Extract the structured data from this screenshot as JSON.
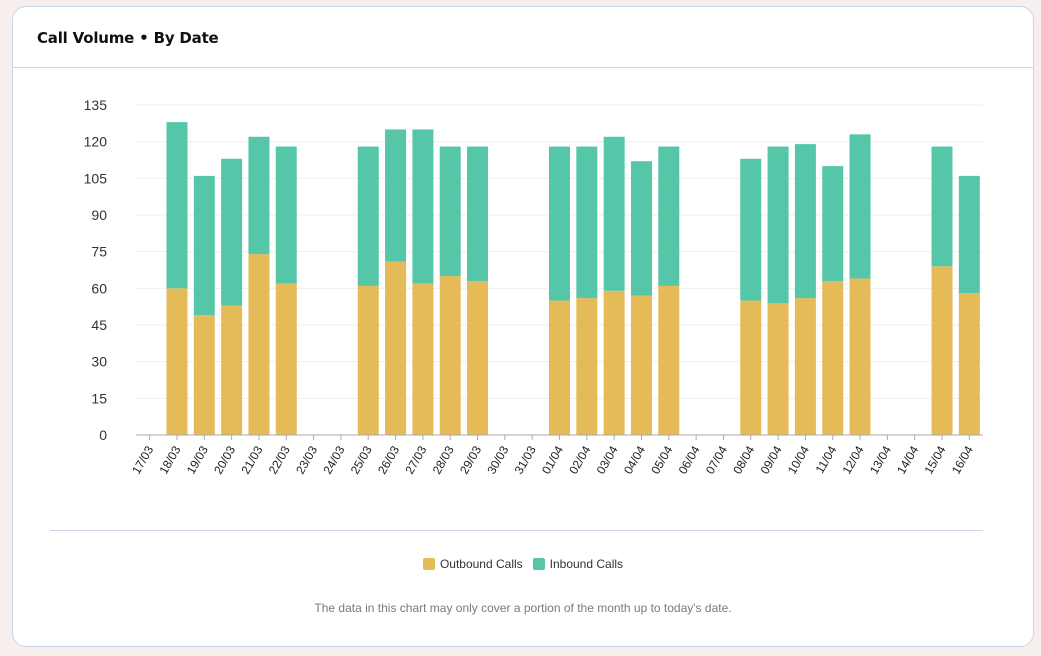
{
  "card": {
    "title": "Call Volume • By Date",
    "footnote": "The data in this chart may only cover a portion of the month up to today's date."
  },
  "legend": [
    {
      "label": "Outbound Calls",
      "color": "#e5bb5a"
    },
    {
      "label": "Inbound Calls",
      "color": "#55c7a8"
    }
  ],
  "chart_data": {
    "type": "bar",
    "stacked": true,
    "categories": [
      "17/03",
      "18/03",
      "19/03",
      "20/03",
      "21/03",
      "22/03",
      "23/03",
      "24/03",
      "25/03",
      "26/03",
      "27/03",
      "28/03",
      "29/03",
      "30/03",
      "31/03",
      "01/04",
      "02/04",
      "03/04",
      "04/04",
      "05/04",
      "06/04",
      "07/04",
      "08/04",
      "09/04",
      "10/04",
      "11/04",
      "12/04",
      "13/04",
      "14/04",
      "15/04",
      "16/04"
    ],
    "series": [
      {
        "name": "Outbound Calls",
        "color": "#e5bb5a",
        "values": [
          0,
          60,
          49,
          53,
          74,
          62,
          0,
          0,
          61,
          71,
          62,
          65,
          63,
          0,
          0,
          55,
          56,
          59,
          57,
          61,
          0,
          0,
          55,
          54,
          56,
          63,
          64,
          0,
          0,
          69,
          58
        ]
      },
      {
        "name": "Inbound Calls",
        "color": "#55c7a8",
        "values": [
          0,
          68,
          57,
          60,
          48,
          56,
          0,
          0,
          57,
          54,
          63,
          53,
          55,
          0,
          0,
          63,
          62,
          63,
          55,
          57,
          0,
          0,
          58,
          64,
          63,
          47,
          59,
          0,
          0,
          49,
          48
        ]
      }
    ],
    "yticks": [
      0,
      15,
      30,
      45,
      60,
      75,
      90,
      105,
      120,
      135
    ],
    "ylim": [
      0,
      135
    ],
    "grid": true,
    "legend_position": "bottom",
    "title": "Call Volume • By Date",
    "xlabel": "",
    "ylabel": ""
  }
}
